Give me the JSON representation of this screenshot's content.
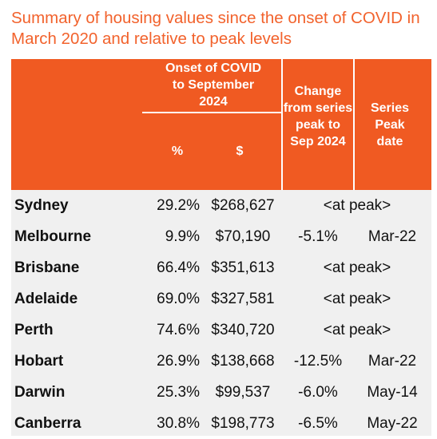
{
  "title": "Summary of housing values since the onset of COVID in March 2020 and relative to peak levels",
  "header": {
    "onset_group": "Onset of COVID to September 2024",
    "pct_label": "%",
    "dollar_label": "$",
    "change_label": "Change from series peak to Sep 2024",
    "peak_date_label": "Series Peak date"
  },
  "rows": [
    {
      "city": "Sydney",
      "pct": "29.2%",
      "dollars": "$268,627",
      "change": "",
      "peak_date": "",
      "at_peak": "<at peak>"
    },
    {
      "city": "Melbourne",
      "pct": "9.9%",
      "dollars": "$70,190",
      "change": "-5.1%",
      "peak_date": "Mar-22",
      "at_peak": ""
    },
    {
      "city": "Brisbane",
      "pct": "66.4%",
      "dollars": "$351,613",
      "change": "",
      "peak_date": "",
      "at_peak": "<at peak>"
    },
    {
      "city": "Adelaide",
      "pct": "69.0%",
      "dollars": "$327,581",
      "change": "",
      "peak_date": "",
      "at_peak": "<at peak>"
    },
    {
      "city": "Perth",
      "pct": "74.6%",
      "dollars": "$340,720",
      "change": "",
      "peak_date": "",
      "at_peak": "<at peak>"
    },
    {
      "city": "Hobart",
      "pct": "26.9%",
      "dollars": "$138,668",
      "change": "-12.5%",
      "peak_date": "Mar-22",
      "at_peak": ""
    },
    {
      "city": "Darwin",
      "pct": "25.3%",
      "dollars": "$99,537",
      "change": "-6.0%",
      "peak_date": "May-14",
      "at_peak": ""
    },
    {
      "city": "Canberra",
      "pct": "30.8%",
      "dollars": "$198,773",
      "change": "-6.5%",
      "peak_date": "May-22",
      "at_peak": ""
    }
  ],
  "colors": {
    "accent": "#f05a22",
    "title": "#f2622c",
    "body_bg": "#f0f0f0"
  }
}
